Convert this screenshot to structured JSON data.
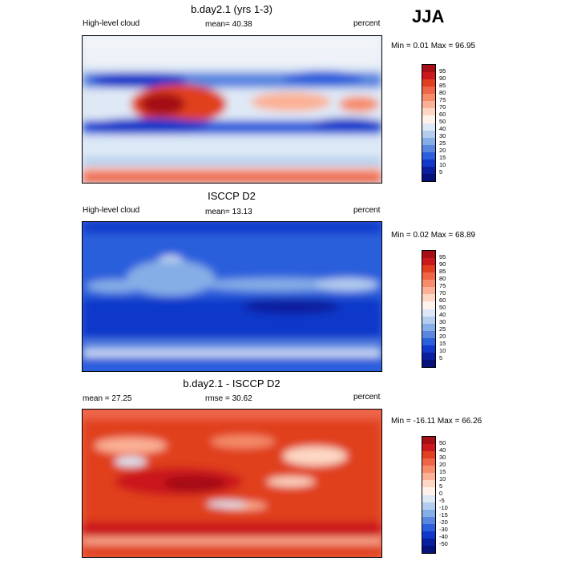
{
  "season": "JJA",
  "panels": [
    {
      "title": "b.day2.1 (yrs 1-3)",
      "left": "High-level cloud",
      "center": "mean=  40.38",
      "right": "percent",
      "minmax": "Min =   0.01 Max =  96.95",
      "ticks": [
        "95",
        "90",
        "85",
        "80",
        "75",
        "70",
        "60",
        "50",
        "40",
        "30",
        "25",
        "20",
        "15",
        "10",
        "5"
      ]
    },
    {
      "title": "ISCCP D2",
      "left": "High-level cloud",
      "center": "mean=  13.13",
      "right": "percent",
      "minmax": "Min =   0.02 Max =  68.89",
      "ticks": [
        "95",
        "90",
        "85",
        "80",
        "75",
        "70",
        "60",
        "50",
        "40",
        "30",
        "25",
        "20",
        "15",
        "10",
        "5"
      ]
    },
    {
      "title": "b.day2.1 - ISCCP D2",
      "left": "mean =  27.25",
      "center": "rmse =  30.62",
      "right": "percent",
      "minmax": "Min = -16.11 Max =  66.26",
      "ticks": [
        "50",
        "40",
        "30",
        "20",
        "15",
        "10",
        "5",
        "0",
        "-5",
        "-10",
        "-15",
        "-20",
        "-30",
        "-40",
        "-50"
      ]
    }
  ],
  "colors": {
    "scale": [
      "#a50f15",
      "#cb181d",
      "#e0401f",
      "#ef6548",
      "#f68c6a",
      "#fbb195",
      "#fdd7c4",
      "#fff2ea",
      "#dce8f6",
      "#b4cdee",
      "#86aee6",
      "#5a86e0",
      "#2c5fdc",
      "#1138c9",
      "#0a1f9e",
      "#06127a"
    ]
  }
}
